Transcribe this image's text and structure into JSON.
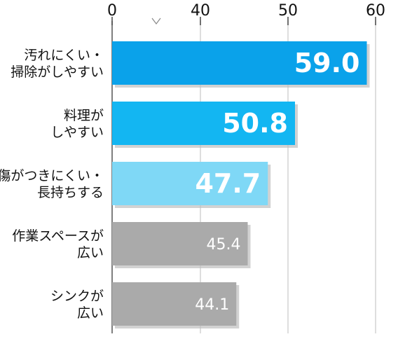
{
  "chart_data": {
    "type": "bar",
    "orientation": "horizontal",
    "categories": [
      [
        "汚れにくい・",
        "掃除がしやすい"
      ],
      [
        "料理が",
        "しやすい"
      ],
      [
        "傷がつきにくい・",
        "長持ちする"
      ],
      [
        "作業スペースが",
        "広い"
      ],
      [
        "シンクが",
        "広い"
      ]
    ],
    "values": [
      59.0,
      50.8,
      47.7,
      45.4,
      44.1
    ],
    "value_labels": [
      "59.0",
      "50.8",
      "47.7",
      "45.4",
      "44.1"
    ],
    "bar_colors": [
      "#0aa2ea",
      "#13b6f2",
      "#7fd8f6",
      "#aaaaaa",
      "#aaaaaa"
    ],
    "bold_value_label": [
      true,
      true,
      true,
      false,
      false
    ],
    "x_axis": {
      "ticks": [
        0,
        40,
        50,
        60
      ],
      "tick_labels": [
        "0",
        "40",
        "50",
        "60"
      ],
      "axis_break": true,
      "range": [
        0,
        60
      ],
      "gridlines": true,
      "position": "top"
    },
    "title": "",
    "xlabel": "",
    "ylabel": ""
  }
}
